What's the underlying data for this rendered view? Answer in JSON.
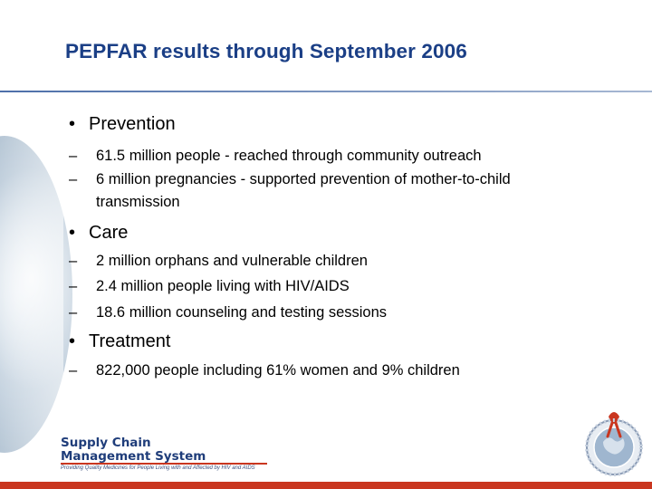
{
  "slide": {
    "title": "PEPFAR results through September 2006",
    "sections": [
      {
        "bullet": "•",
        "heading": "Prevention",
        "items": [
          "61.5 million people - reached through community outreach",
          "6 million pregnancies - supported prevention of mother-to-child transmission"
        ]
      },
      {
        "bullet": "•",
        "heading": "Care",
        "items": [
          "2 million orphans and vulnerable children",
          "2.4 million people living with HIV/AIDS",
          "18.6 million counseling and testing sessions"
        ]
      },
      {
        "bullet": "•",
        "heading": "Treatment",
        "items": [
          "822,000 people including 61% women and 9% children"
        ]
      }
    ],
    "dash": "–"
  },
  "footer": {
    "logo_line1": "Supply Chain",
    "logo_line2": "Management System",
    "logo_tagline": "Providing Quality Medicines for People Living with and Affected by HIV and AIDS",
    "accent_color": "#c9361f",
    "brand_color": "#1b3f86"
  }
}
